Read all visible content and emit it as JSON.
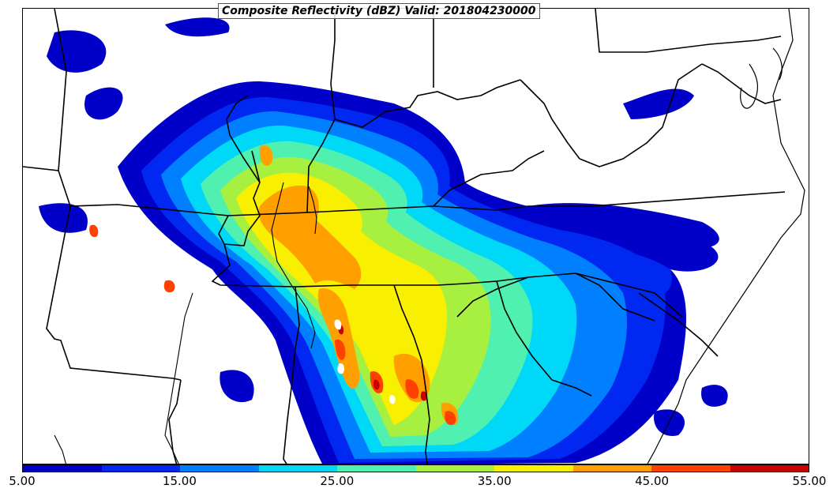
{
  "title": "Composite Reflectivity (dBZ) Valid: 201804230000",
  "colorbar": {
    "ticks": [
      "5.00",
      "15.00",
      "25.00",
      "35.00",
      "45.00",
      "55.00"
    ],
    "tick_values": [
      5,
      15,
      25,
      35,
      45,
      55
    ],
    "min": 5,
    "max": 55,
    "colors": [
      "#0000c8",
      "#0028f0",
      "#0080ff",
      "#00d8f8",
      "#50f0b0",
      "#a8f040",
      "#f8f000",
      "#ffa000",
      "#ff4000",
      "#c80000"
    ]
  },
  "legend_scale_colors": {
    "5": "#0000c8",
    "10": "#0028f0",
    "15": "#0080ff",
    "20": "#00d8f8",
    "25": "#50f0b0",
    "30": "#a8f040",
    "35": "#f8f000",
    "40": "#ffa000",
    "45": "#ff4000",
    "50": "#c80000"
  }
}
